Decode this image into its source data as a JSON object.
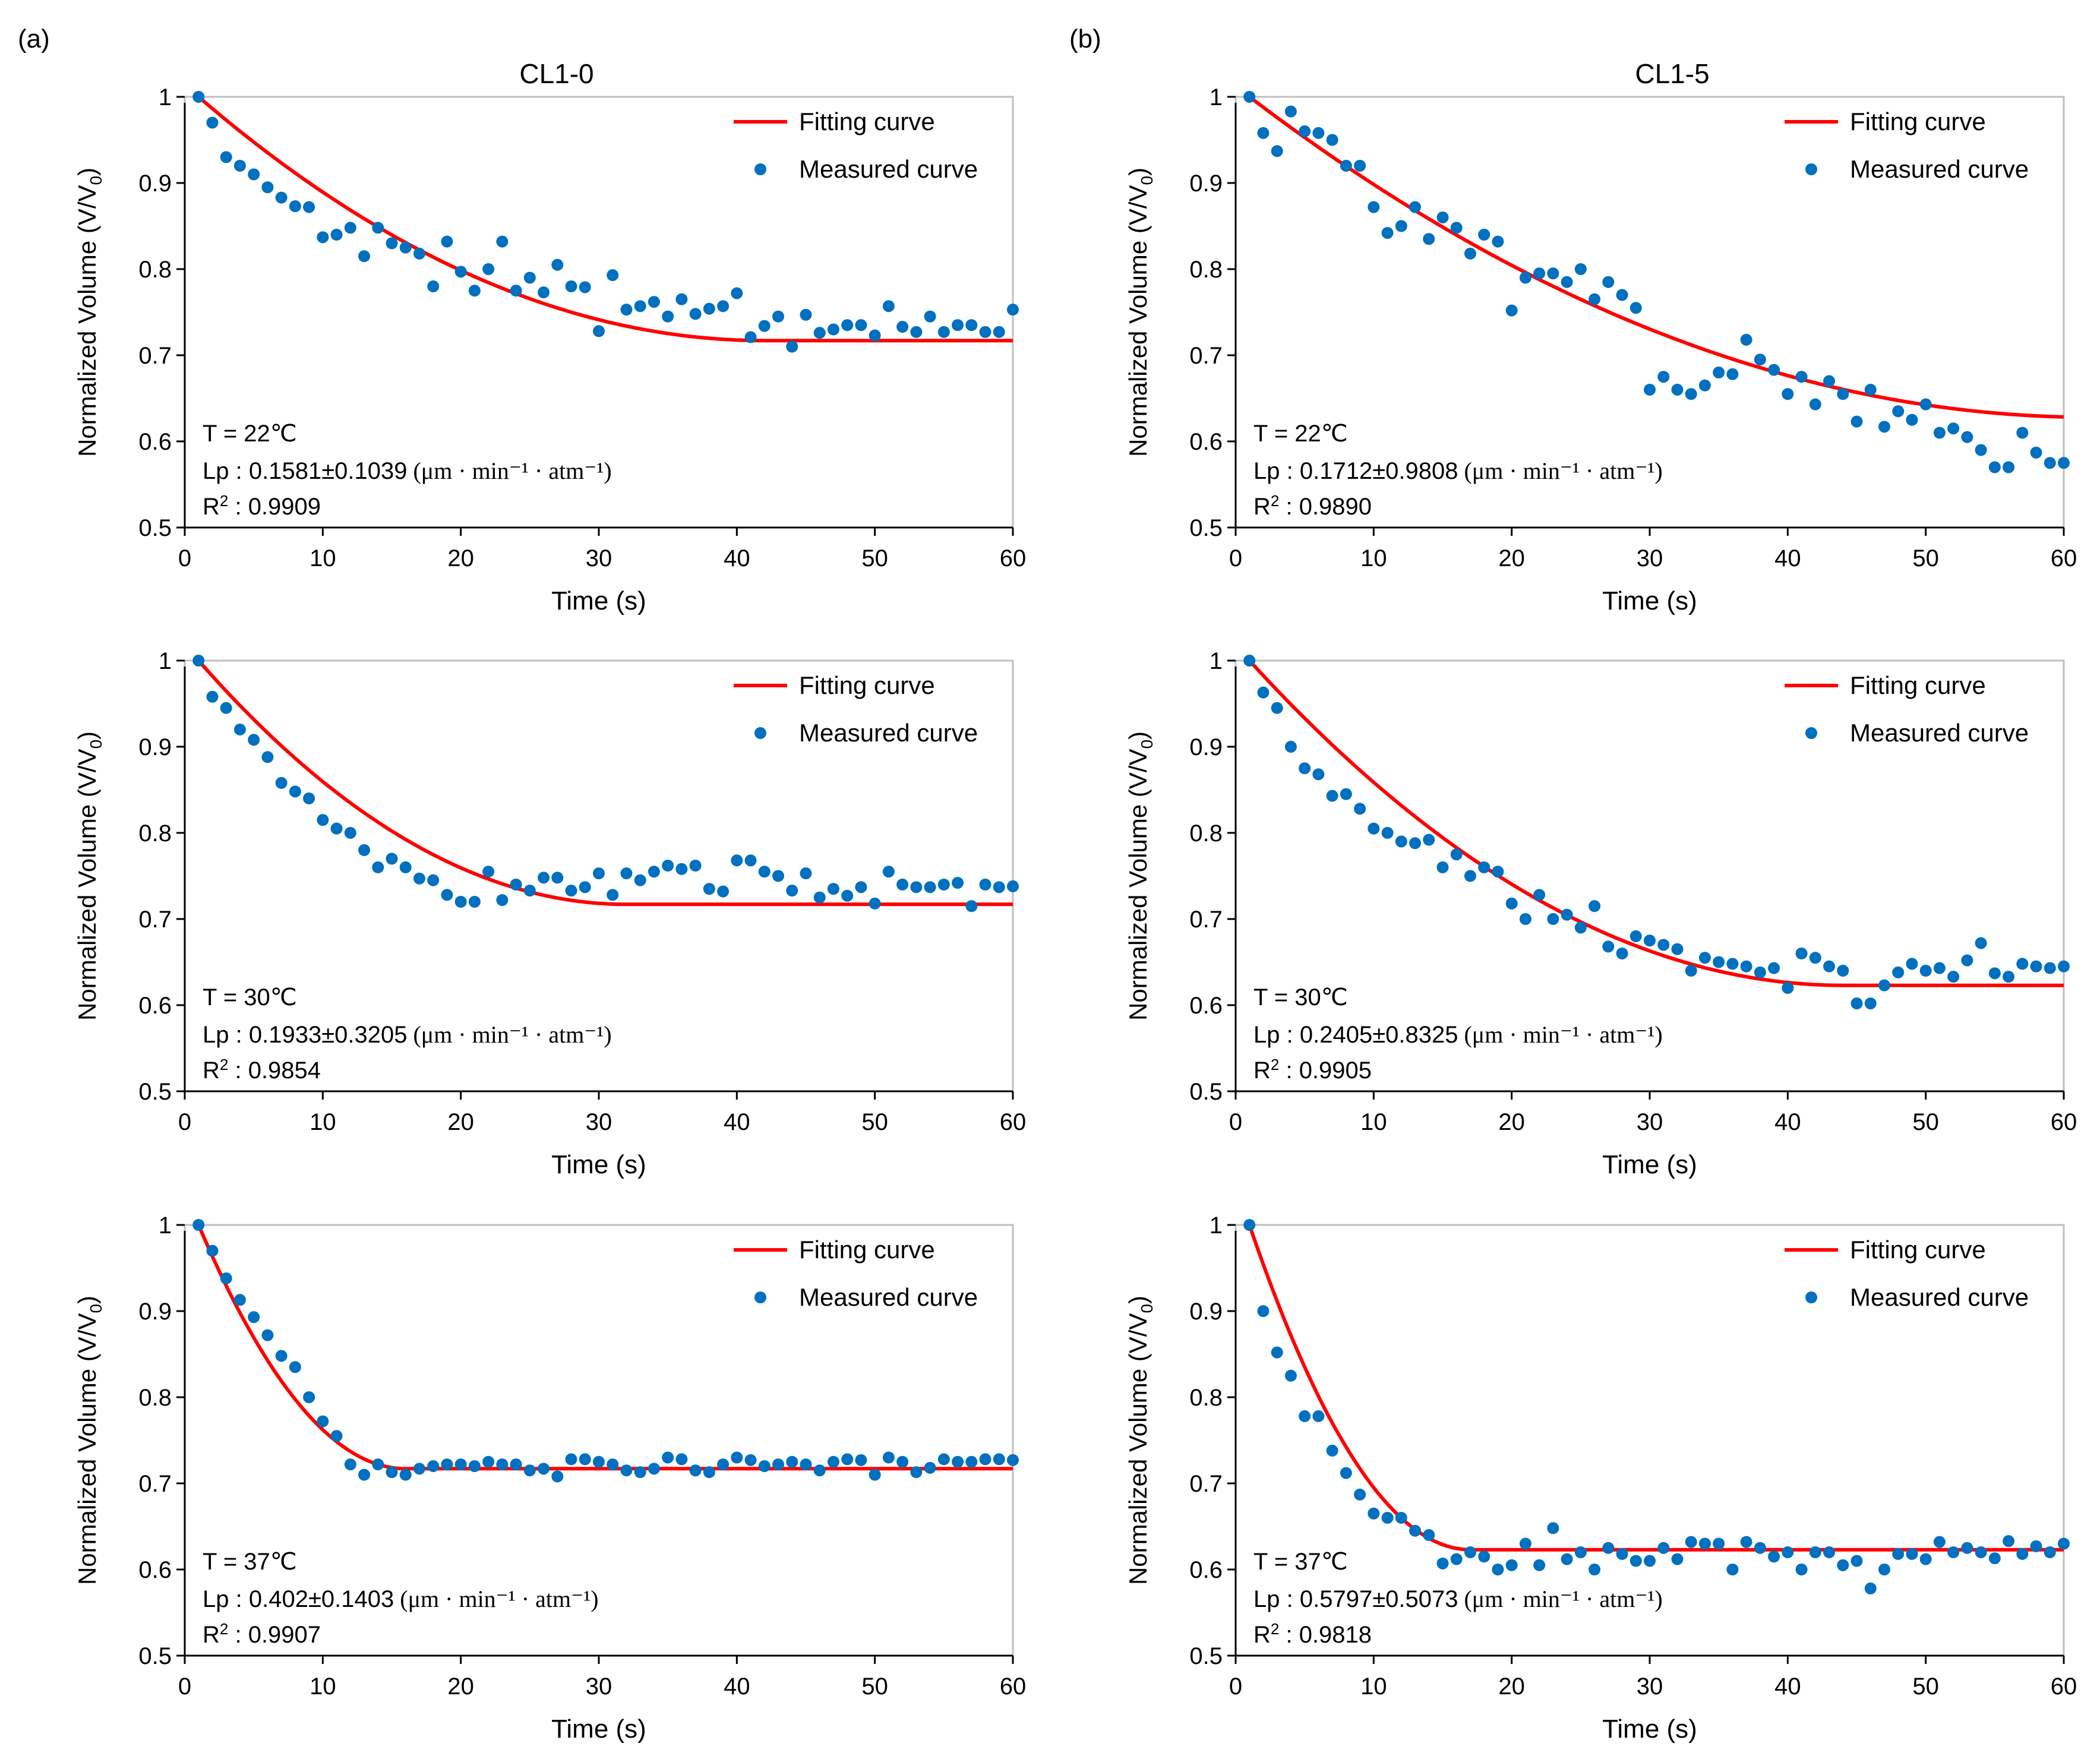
{
  "figure": {
    "panel_labels": [
      "(a)",
      "(b)"
    ],
    "column_titles": [
      "CL1-0",
      "CL1-5"
    ],
    "colors": {
      "fit": "#ff0000",
      "measured": "#0070c0",
      "axis": "#000000"
    }
  },
  "chart_data": [
    {
      "id": "a1",
      "type": "scatter",
      "xlabel": "Time (s)",
      "ylabel": "Normalized Volume (V/V0)",
      "xlim": [
        0,
        60
      ],
      "ylim": [
        0.5,
        1.0
      ],
      "xticks": [
        "0",
        "10",
        "20",
        "30",
        "40",
        "50",
        "60"
      ],
      "yticks": [
        "0.5",
        "0.6",
        "0.7",
        "0.8",
        "0.9",
        "1"
      ],
      "legend": {
        "fit": "Fitting curve",
        "measured": "Measured curve"
      },
      "annotation": {
        "t": "T = 22℃",
        "lp_label": "Lp : ",
        "lp_value": "0.1581±0.1039",
        "units": "(μm · min⁻¹ · atm⁻¹)",
        "r2_label": "R",
        "r2_value": " : 0.9909"
      },
      "fit": {
        "plateau": 0.717,
        "t_end": 42
      },
      "measured": [
        1.0,
        0.97,
        0.93,
        0.92,
        0.91,
        0.895,
        0.883,
        0.873,
        0.872,
        0.837,
        0.84,
        0.848,
        0.815,
        0.848,
        0.83,
        0.825,
        0.818,
        0.78,
        0.832,
        0.797,
        0.775,
        0.8,
        0.832,
        0.775,
        0.79,
        0.773,
        0.805,
        0.78,
        0.779,
        0.728,
        0.793,
        0.753,
        0.757,
        0.762,
        0.745,
        0.765,
        0.748,
        0.754,
        0.757,
        0.772,
        0.721,
        0.734,
        0.745,
        0.71,
        0.747,
        0.726,
        0.73,
        0.735,
        0.735,
        0.723,
        0.757,
        0.733,
        0.727,
        0.745,
        0.727,
        0.735,
        0.735,
        0.727,
        0.727,
        0.753
      ]
    },
    {
      "id": "b1",
      "type": "scatter",
      "xlabel": "Time (s)",
      "ylabel": "Normalized Volume (V/V0)",
      "xlim": [
        0,
        60
      ],
      "ylim": [
        0.5,
        1.0
      ],
      "xticks": [
        "0",
        "10",
        "20",
        "30",
        "40",
        "50",
        "60"
      ],
      "yticks": [
        "0.5",
        "0.6",
        "0.7",
        "0.8",
        "0.9",
        "1"
      ],
      "legend": {
        "fit": "Fitting curve",
        "measured": "Measured curve"
      },
      "annotation": {
        "t": "T = 22℃",
        "lp_label": "Lp : ",
        "lp_value": "0.1712±0.9808",
        "units": "(μm · min⁻¹ · atm⁻¹)",
        "r2_label": "R",
        "r2_value": " : 0.9890"
      },
      "fit": {
        "plateau": 0.628,
        "t_end": 62
      },
      "measured": [
        1.0,
        0.958,
        0.937,
        0.983,
        0.96,
        0.958,
        0.95,
        0.92,
        0.92,
        0.872,
        0.842,
        0.85,
        0.872,
        0.835,
        0.86,
        0.848,
        0.818,
        0.84,
        0.832,
        0.752,
        0.79,
        0.795,
        0.795,
        0.785,
        0.8,
        0.765,
        0.785,
        0.77,
        0.755,
        0.66,
        0.675,
        0.66,
        0.655,
        0.665,
        0.68,
        0.678,
        0.718,
        0.695,
        0.683,
        0.655,
        0.675,
        0.643,
        0.67,
        0.655,
        0.623,
        0.66,
        0.617,
        0.635,
        0.625,
        0.643,
        0.61,
        0.615,
        0.605,
        0.59,
        0.57,
        0.57,
        0.61,
        0.587,
        0.575,
        0.575
      ]
    },
    {
      "id": "a2",
      "type": "scatter",
      "xlabel": "Time (s)",
      "ylabel": "Normalized Volume (V/V0)",
      "xlim": [
        0,
        60
      ],
      "ylim": [
        0.5,
        1.0
      ],
      "xticks": [
        "0",
        "10",
        "20",
        "30",
        "40",
        "50",
        "60"
      ],
      "yticks": [
        "0.5",
        "0.6",
        "0.7",
        "0.8",
        "0.9",
        "1"
      ],
      "legend": {
        "fit": "Fitting curve",
        "measured": "Measured curve"
      },
      "annotation": {
        "t": "T = 30℃",
        "lp_label": "Lp : ",
        "lp_value": "0.1933±0.3205",
        "units": "(μm · min⁻¹ · atm⁻¹)",
        "r2_label": "R",
        "r2_value": " : 0.9854"
      },
      "fit": {
        "plateau": 0.717,
        "t_end": 32
      },
      "measured": [
        1.0,
        0.958,
        0.945,
        0.92,
        0.908,
        0.888,
        0.858,
        0.848,
        0.84,
        0.815,
        0.805,
        0.8,
        0.78,
        0.76,
        0.77,
        0.76,
        0.747,
        0.745,
        0.728,
        0.72,
        0.72,
        0.755,
        0.722,
        0.74,
        0.733,
        0.748,
        0.748,
        0.733,
        0.737,
        0.753,
        0.728,
        0.753,
        0.745,
        0.755,
        0.762,
        0.758,
        0.762,
        0.735,
        0.732,
        0.768,
        0.768,
        0.755,
        0.75,
        0.733,
        0.753,
        0.725,
        0.735,
        0.727,
        0.737,
        0.718,
        0.755,
        0.74,
        0.737,
        0.737,
        0.74,
        0.742,
        0.715,
        0.74,
        0.737,
        0.738
      ]
    },
    {
      "id": "b2",
      "type": "scatter",
      "xlabel": "Time (s)",
      "ylabel": "Normalized Volume (V/V0)",
      "xlim": [
        0,
        60
      ],
      "ylim": [
        0.5,
        1.0
      ],
      "xticks": [
        "0",
        "10",
        "20",
        "30",
        "40",
        "50",
        "60"
      ],
      "yticks": [
        "0.5",
        "0.6",
        "0.7",
        "0.8",
        "0.9",
        "1"
      ],
      "legend": {
        "fit": "Fitting curve",
        "measured": "Measured curve"
      },
      "annotation": {
        "t": "T = 30℃",
        "lp_label": "Lp : ",
        "lp_value": "0.2405±0.8325",
        "units": "(μm · min⁻¹ · atm⁻¹)",
        "r2_label": "R",
        "r2_value": " : 0.9905"
      },
      "fit": {
        "plateau": 0.623,
        "t_end": 44
      },
      "measured": [
        1.0,
        0.963,
        0.945,
        0.9,
        0.875,
        0.868,
        0.843,
        0.845,
        0.828,
        0.805,
        0.8,
        0.79,
        0.788,
        0.792,
        0.76,
        0.775,
        0.75,
        0.76,
        0.755,
        0.718,
        0.7,
        0.728,
        0.7,
        0.705,
        0.69,
        0.715,
        0.668,
        0.66,
        0.68,
        0.675,
        0.67,
        0.665,
        0.64,
        0.655,
        0.65,
        0.648,
        0.645,
        0.638,
        0.643,
        0.62,
        0.66,
        0.655,
        0.645,
        0.64,
        0.602,
        0.602,
        0.623,
        0.638,
        0.648,
        0.64,
        0.643,
        0.633,
        0.652,
        0.672,
        0.637,
        0.633,
        0.648,
        0.645,
        0.643,
        0.645
      ]
    },
    {
      "id": "a3",
      "type": "scatter",
      "xlabel": "Time (s)",
      "ylabel": "Normalized Volume (V/V0)",
      "xlim": [
        0,
        60
      ],
      "ylim": [
        0.5,
        1.0
      ],
      "xticks": [
        "0",
        "10",
        "20",
        "30",
        "40",
        "50",
        "60"
      ],
      "yticks": [
        "0.5",
        "0.6",
        "0.7",
        "0.8",
        "0.9",
        "1"
      ],
      "legend": {
        "fit": "Fitting curve",
        "measured": "Measured curve"
      },
      "annotation": {
        "t": "T = 37℃",
        "lp_label": "Lp : ",
        "lp_value": "0.402±0.1403",
        "units": "(μm · min⁻¹ · atm⁻¹)",
        "r2_label": "R",
        "r2_value": " : 0.9907"
      },
      "fit": {
        "plateau": 0.717,
        "t_end": 16
      },
      "measured": [
        1.0,
        0.97,
        0.938,
        0.913,
        0.893,
        0.872,
        0.848,
        0.835,
        0.8,
        0.772,
        0.755,
        0.722,
        0.71,
        0.722,
        0.713,
        0.71,
        0.717,
        0.72,
        0.722,
        0.722,
        0.72,
        0.725,
        0.722,
        0.722,
        0.715,
        0.717,
        0.708,
        0.728,
        0.728,
        0.725,
        0.722,
        0.715,
        0.713,
        0.717,
        0.73,
        0.728,
        0.715,
        0.713,
        0.722,
        0.73,
        0.727,
        0.72,
        0.722,
        0.725,
        0.722,
        0.715,
        0.725,
        0.728,
        0.727,
        0.71,
        0.73,
        0.725,
        0.713,
        0.718,
        0.728,
        0.725,
        0.725,
        0.728,
        0.728,
        0.727
      ]
    },
    {
      "id": "b3",
      "type": "scatter",
      "xlabel": "Time (s)",
      "ylabel": "Normalized Volume (V/V0)",
      "xlim": [
        0,
        60
      ],
      "ylim": [
        0.5,
        1.0
      ],
      "xticks": [
        "0",
        "10",
        "20",
        "30",
        "40",
        "50",
        "60"
      ],
      "yticks": [
        "0.5",
        "0.6",
        "0.7",
        "0.8",
        "0.9",
        "1"
      ],
      "legend": {
        "fit": "Fitting curve",
        "measured": "Measured curve"
      },
      "annotation": {
        "t": "T = 37℃",
        "lp_label": "Lp : ",
        "lp_value": "0.5797±0.5073",
        "units": "(μm · min⁻¹ · atm⁻¹)",
        "r2_label": "R",
        "r2_value": " : 0.9818"
      },
      "fit": {
        "plateau": 0.623,
        "t_end": 17
      },
      "measured": [
        1.0,
        0.9,
        0.852,
        0.825,
        0.778,
        0.778,
        0.738,
        0.712,
        0.687,
        0.665,
        0.66,
        0.66,
        0.645,
        0.64,
        0.607,
        0.612,
        0.62,
        0.615,
        0.6,
        0.605,
        0.63,
        0.605,
        0.648,
        0.612,
        0.62,
        0.6,
        0.625,
        0.618,
        0.61,
        0.61,
        0.625,
        0.612,
        0.632,
        0.63,
        0.63,
        0.6,
        0.632,
        0.625,
        0.615,
        0.62,
        0.6,
        0.62,
        0.62,
        0.605,
        0.61,
        0.578,
        0.6,
        0.618,
        0.618,
        0.612,
        0.632,
        0.62,
        0.625,
        0.62,
        0.613,
        0.633,
        0.618,
        0.627,
        0.62,
        0.63
      ]
    }
  ]
}
